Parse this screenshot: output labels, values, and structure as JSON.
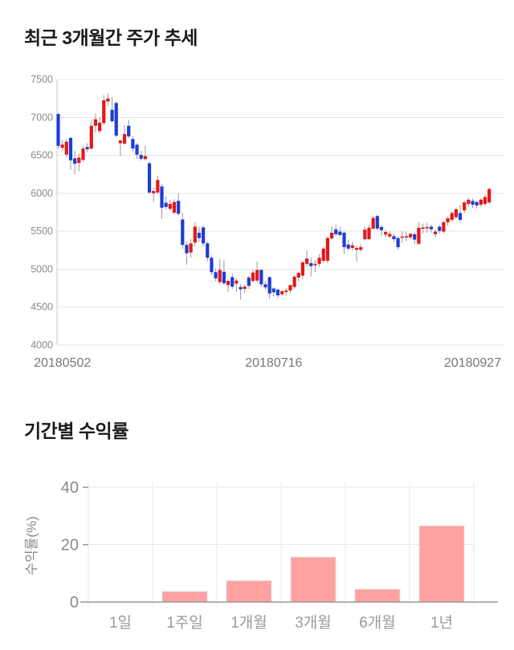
{
  "page": {
    "section1_title": "최근 3개월간 주가 추세",
    "section2_title": "기간별 수익률"
  },
  "chart_data": [
    {
      "type": "candlestick",
      "title": "최근 3개월간 주가 추세",
      "ylim": [
        4000,
        7500
      ],
      "y_ticks": [
        7500,
        7000,
        6500,
        6000,
        5500,
        5000,
        4500,
        4000
      ],
      "x_tick_labels": [
        "20180502",
        "20180716",
        "20180927"
      ],
      "x_tick_indices": [
        1,
        52,
        100
      ],
      "grid_on": true,
      "up_color": "#e51717",
      "down_color": "#1e3cd7",
      "wick_color": "#999999",
      "grid_color": "#e4e4e4",
      "axis_line_color": "#cccccc",
      "tick_label_color": "#8a8a8a",
      "x_label_color": "#777777",
      "candles_ohlc": [
        [
          7045,
          7060,
          6590,
          6625
        ],
        [
          6600,
          6700,
          6560,
          6640
        ],
        [
          6510,
          6720,
          6470,
          6680
        ],
        [
          6730,
          6740,
          6310,
          6435
        ],
        [
          6460,
          6560,
          6250,
          6390
        ],
        [
          6400,
          6520,
          6290,
          6470
        ],
        [
          6440,
          6620,
          6410,
          6590
        ],
        [
          6610,
          6660,
          6540,
          6580
        ],
        [
          6590,
          6960,
          6570,
          6890
        ],
        [
          6890,
          7050,
          6800,
          6975
        ],
        [
          6820,
          7000,
          6790,
          6930
        ],
        [
          6925,
          7295,
          6900,
          7225
        ],
        [
          7210,
          7320,
          7150,
          7250
        ],
        [
          7100,
          7270,
          6930,
          6950
        ],
        [
          7190,
          7210,
          6740,
          6760
        ],
        [
          6660,
          6710,
          6490,
          6695
        ],
        [
          6655,
          6900,
          6640,
          6780
        ],
        [
          6890,
          6970,
          6730,
          6750
        ],
        [
          6715,
          6750,
          6550,
          6590
        ],
        [
          6640,
          6660,
          6450,
          6510
        ],
        [
          6505,
          6560,
          6430,
          6455
        ],
        [
          6450,
          6625,
          6430,
          6490
        ],
        [
          6395,
          6420,
          5990,
          6010
        ],
        [
          6000,
          6080,
          5885,
          6030
        ],
        [
          6010,
          6230,
          5990,
          6175
        ],
        [
          6090,
          6120,
          5660,
          5810
        ],
        [
          5875,
          5960,
          5790,
          5820
        ],
        [
          5795,
          5910,
          5770,
          5860
        ],
        [
          5745,
          5920,
          5720,
          5885
        ],
        [
          5900,
          6000,
          5700,
          5730
        ],
        [
          5655,
          5740,
          5270,
          5320
        ],
        [
          5320,
          5360,
          5060,
          5210
        ],
        [
          5220,
          5400,
          5150,
          5340
        ],
        [
          5350,
          5620,
          5300,
          5560
        ],
        [
          5480,
          5560,
          5360,
          5410
        ],
        [
          5550,
          5580,
          5300,
          5340
        ],
        [
          5340,
          5370,
          5100,
          5150
        ],
        [
          5150,
          5180,
          4920,
          4960
        ],
        [
          4960,
          5010,
          4840,
          4880
        ],
        [
          4830,
          5130,
          4800,
          4990
        ],
        [
          4965,
          5120,
          4790,
          4815
        ],
        [
          4790,
          4870,
          4700,
          4845
        ],
        [
          4895,
          4940,
          4740,
          4770
        ],
        [
          4810,
          4880,
          4700,
          4850
        ],
        [
          4765,
          4800,
          4600,
          4735
        ],
        [
          4740,
          4800,
          4690,
          4770
        ],
        [
          4890,
          4910,
          4740,
          4780
        ],
        [
          4845,
          4990,
          4820,
          4955
        ],
        [
          4850,
          5100,
          4820,
          4990
        ],
        [
          4990,
          5000,
          4760,
          4800
        ],
        [
          4800,
          4840,
          4730,
          4760
        ],
        [
          4895,
          4900,
          4610,
          4680
        ],
        [
          4745,
          4760,
          4640,
          4695
        ],
        [
          4730,
          4740,
          4620,
          4655
        ],
        [
          4670,
          4730,
          4640,
          4710
        ],
        [
          4700,
          4750,
          4650,
          4720
        ],
        [
          4720,
          4800,
          4680,
          4790
        ],
        [
          4765,
          4920,
          4740,
          4900
        ],
        [
          4890,
          4970,
          4840,
          4950
        ],
        [
          4915,
          5110,
          4870,
          5090
        ],
        [
          5070,
          5250,
          5040,
          5140
        ],
        [
          5080,
          5150,
          4900,
          5040
        ],
        [
          5050,
          5120,
          4960,
          5070
        ],
        [
          5070,
          5200,
          5030,
          5150
        ],
        [
          5110,
          5290,
          5080,
          5270
        ],
        [
          5110,
          5430,
          5080,
          5410
        ],
        [
          5405,
          5570,
          5380,
          5480
        ],
        [
          5525,
          5590,
          5440,
          5460
        ],
        [
          5495,
          5560,
          5430,
          5450
        ],
        [
          5480,
          5500,
          5200,
          5290
        ],
        [
          5325,
          5390,
          5250,
          5270
        ],
        [
          5280,
          5360,
          5250,
          5315
        ],
        [
          5255,
          5310,
          5100,
          5280
        ],
        [
          5255,
          5330,
          5230,
          5290
        ],
        [
          5395,
          5560,
          5380,
          5520
        ],
        [
          5395,
          5580,
          5390,
          5545
        ],
        [
          5535,
          5700,
          5520,
          5675
        ],
        [
          5700,
          5720,
          5510,
          5535
        ],
        [
          5555,
          5580,
          5430,
          5515
        ],
        [
          5455,
          5520,
          5420,
          5490
        ],
        [
          5430,
          5500,
          5410,
          5465
        ],
        [
          5435,
          5470,
          5360,
          5395
        ],
        [
          5410,
          5430,
          5260,
          5290
        ],
        [
          5420,
          5500,
          5350,
          5430
        ],
        [
          5425,
          5490,
          5370,
          5435
        ],
        [
          5420,
          5480,
          5390,
          5465
        ],
        [
          5460,
          5480,
          5330,
          5390
        ],
        [
          5335,
          5620,
          5320,
          5545
        ],
        [
          5540,
          5600,
          5470,
          5550
        ],
        [
          5545,
          5610,
          5480,
          5555
        ],
        [
          5560,
          5590,
          5480,
          5525
        ],
        [
          5460,
          5530,
          5420,
          5495
        ],
        [
          5560,
          5580,
          5470,
          5505
        ],
        [
          5495,
          5640,
          5470,
          5620
        ],
        [
          5620,
          5690,
          5570,
          5670
        ],
        [
          5650,
          5760,
          5620,
          5740
        ],
        [
          5685,
          5810,
          5660,
          5790
        ],
        [
          5740,
          5845,
          5620,
          5650
        ],
        [
          5775,
          5900,
          5740,
          5880
        ],
        [
          5860,
          5940,
          5820,
          5915
        ],
        [
          5900,
          5930,
          5810,
          5850
        ],
        [
          5885,
          5900,
          5800,
          5840
        ],
        [
          5850,
          5940,
          5820,
          5915
        ],
        [
          5860,
          5980,
          5830,
          5950
        ],
        [
          5880,
          6075,
          5860,
          6055
        ]
      ]
    },
    {
      "type": "bar",
      "title": "기간별 수익률",
      "categories": [
        "1일",
        "1주일",
        "1개월",
        "3개월",
        "6개월",
        "1년"
      ],
      "values": [
        0,
        3.6,
        7.4,
        15.6,
        4.4,
        26.5
      ],
      "ylabel": "수익률(%)",
      "y_ticks": [
        0,
        20,
        40
      ],
      "ylim": [
        0,
        40
      ],
      "grid_on": true,
      "bar_color": "#ffa1a1",
      "bar_border_color": "#e0e0e0",
      "grid_color": "#e7e7e7",
      "axis_color": "#9a9a9a",
      "tick_label_color": "#8a8a8a",
      "x_label_color": "#999999"
    }
  ]
}
